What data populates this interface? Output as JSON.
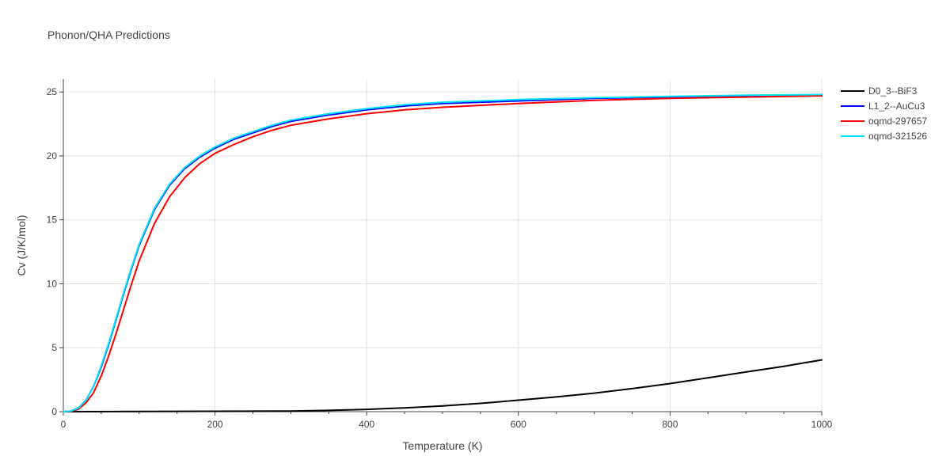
{
  "chart_data": {
    "type": "line",
    "title": "Phonon/QHA Predictions",
    "xlabel": "Temperature (K)",
    "ylabel": "Cv (J/K/mol)",
    "xlim": [
      0,
      1000
    ],
    "ylim": [
      0,
      26
    ],
    "xticks": [
      0,
      200,
      400,
      600,
      800,
      1000
    ],
    "yticks": [
      0,
      5,
      10,
      15,
      20,
      25
    ],
    "grid": true,
    "legend_position": "top-right",
    "series": [
      {
        "name": "D0_3--BiF3",
        "color": "#000000",
        "x": [
          0,
          100,
          200,
          300,
          350,
          400,
          450,
          500,
          550,
          600,
          650,
          700,
          750,
          800,
          850,
          900,
          950,
          1000
        ],
        "y": [
          0,
          0.02,
          0.03,
          0.05,
          0.1,
          0.18,
          0.3,
          0.45,
          0.65,
          0.9,
          1.15,
          1.45,
          1.8,
          2.2,
          2.65,
          3.1,
          3.55,
          4.05
        ]
      },
      {
        "name": "L1_2--AuCu3",
        "color": "#0000ff",
        "x": [
          0,
          10,
          20,
          30,
          40,
          50,
          60,
          70,
          80,
          90,
          100,
          120,
          140,
          160,
          180,
          200,
          225,
          250,
          275,
          300,
          350,
          400,
          450,
          500,
          600,
          700,
          800,
          900,
          1000
        ],
        "y": [
          0,
          0.05,
          0.3,
          0.9,
          2.0,
          3.5,
          5.3,
          7.3,
          9.3,
          11.2,
          13.0,
          15.8,
          17.7,
          19.0,
          19.9,
          20.6,
          21.3,
          21.8,
          22.3,
          22.7,
          23.2,
          23.6,
          23.9,
          24.1,
          24.3,
          24.5,
          24.6,
          24.7,
          24.75
        ]
      },
      {
        "name": "oqmd-297657",
        "color": "#ff0000",
        "x": [
          0,
          10,
          20,
          30,
          40,
          50,
          60,
          70,
          80,
          90,
          100,
          120,
          140,
          160,
          180,
          200,
          225,
          250,
          275,
          300,
          350,
          400,
          450,
          500,
          600,
          700,
          800,
          900,
          1000
        ],
        "y": [
          0,
          0.03,
          0.2,
          0.7,
          1.5,
          2.8,
          4.4,
          6.2,
          8.1,
          10.0,
          11.8,
          14.7,
          16.8,
          18.3,
          19.4,
          20.2,
          20.9,
          21.5,
          22.0,
          22.4,
          22.9,
          23.3,
          23.6,
          23.8,
          24.1,
          24.35,
          24.5,
          24.6,
          24.7
        ]
      },
      {
        "name": "oqmd-321526",
        "color": "#00e5ff",
        "x": [
          0,
          10,
          20,
          30,
          40,
          50,
          60,
          70,
          80,
          90,
          100,
          120,
          140,
          160,
          180,
          200,
          225,
          250,
          275,
          300,
          350,
          400,
          450,
          500,
          600,
          700,
          800,
          900,
          1000
        ],
        "y": [
          0,
          0.05,
          0.3,
          0.9,
          2.0,
          3.6,
          5.4,
          7.4,
          9.4,
          11.3,
          13.1,
          15.9,
          17.8,
          19.1,
          20.0,
          20.7,
          21.4,
          21.9,
          22.4,
          22.8,
          23.3,
          23.7,
          24.0,
          24.2,
          24.4,
          24.55,
          24.65,
          24.75,
          24.8
        ]
      }
    ]
  }
}
